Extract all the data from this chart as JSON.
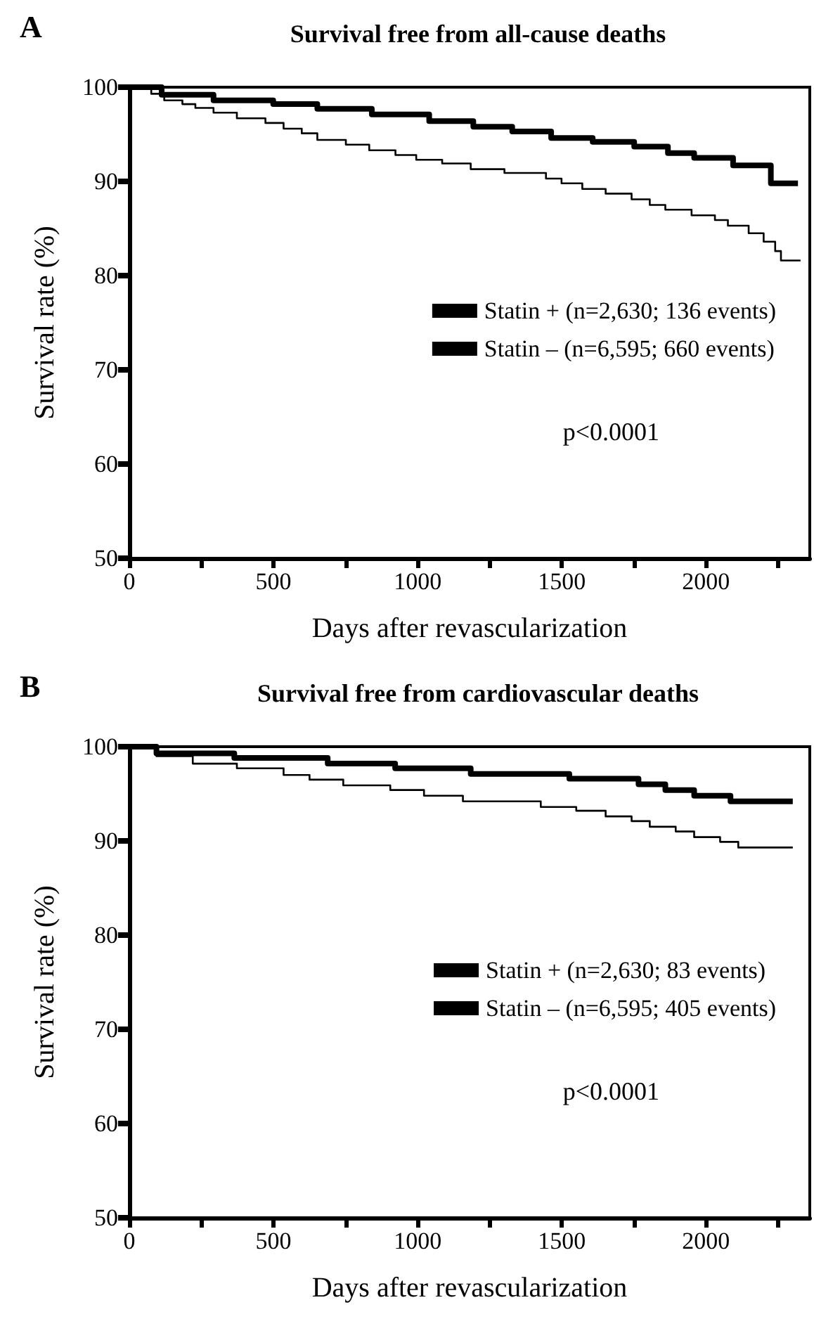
{
  "chart_data": [
    {
      "type": "step",
      "title": "Survival free from all-cause deaths",
      "xlabel": "Days after revascularization",
      "ylabel": "Survival rate (%)",
      "annotations": [
        "A",
        "p<0.0001"
      ],
      "xlim": [
        0,
        2360
      ],
      "xticks": [
        0,
        {
          "value": 250,
          "label": null
        },
        500,
        {
          "value": 750,
          "label": null
        },
        1000,
        {
          "value": 1250,
          "label": null
        },
        1500,
        {
          "value": 1750,
          "label": null
        },
        2000,
        {
          "value": 2250,
          "label": null
        }
      ],
      "ylim": [
        50,
        100
      ],
      "yticks": [
        50,
        60,
        70,
        80,
        90,
        100
      ],
      "legend": "right",
      "grid": false,
      "marker": "none",
      "series": [
        {
          "name": "Statin + (n=2,630; 136 events)",
          "color": "#000000",
          "x": [
            0,
            112,
            292,
            499,
            652,
            841,
            1040,
            1193,
            1328,
            1463,
            1607,
            1751,
            1868,
            1959,
            2094,
            2225,
            2319
          ],
          "values": [
            100,
            99.2,
            98.6,
            98.2,
            97.7,
            97.1,
            96.4,
            95.8,
            95.3,
            94.6,
            94.2,
            93.7,
            93.0,
            92.5,
            91.7,
            89.8,
            89.8
          ]
        },
        {
          "name": "Statin – (n=6,595; 660 events)",
          "color": "#000000",
          "x": [
            0,
            76,
            121,
            184,
            229,
            292,
            373,
            472,
            535,
            598,
            652,
            751,
            832,
            923,
            995,
            1085,
            1184,
            1301,
            1445,
            1499,
            1571,
            1652,
            1742,
            1805,
            1859,
            1950,
            2031,
            2076,
            2148,
            2200,
            2240,
            2260,
            2328
          ],
          "values": [
            100,
            99.3,
            98.6,
            98.2,
            97.8,
            97.3,
            96.7,
            96.2,
            95.6,
            95.1,
            94.4,
            93.9,
            93.3,
            92.8,
            92.3,
            91.9,
            91.3,
            90.9,
            90.3,
            89.8,
            89.2,
            88.7,
            88.1,
            87.5,
            87.0,
            86.4,
            85.9,
            85.3,
            84.5,
            83.6,
            82.6,
            81.6,
            81.6
          ]
        }
      ]
    },
    {
      "type": "step",
      "title": "Survival free from cardiovascular deaths",
      "xlabel": "Days after revascularization",
      "ylabel": "Survival rate (%)",
      "annotations": [
        "B",
        "p<0.0001"
      ],
      "xlim": [
        0,
        2360
      ],
      "xticks": [
        0,
        {
          "value": 250,
          "label": null
        },
        500,
        {
          "value": 750,
          "label": null
        },
        1000,
        {
          "value": 1250,
          "label": null
        },
        1500,
        {
          "value": 1750,
          "label": null
        },
        2000,
        {
          "value": 2250,
          "label": null
        }
      ],
      "ylim": [
        50,
        100
      ],
      "yticks": [
        50,
        60,
        70,
        80,
        90,
        100
      ],
      "legend": "right",
      "grid": false,
      "marker": "none",
      "series": [
        {
          "name": "Statin + (n=2,630; 83 events)",
          "color": "#000000",
          "x": [
            0,
            94,
            364,
            688,
            922,
            1184,
            1526,
            1766,
            1859,
            1959,
            2085,
            2301
          ],
          "values": [
            100,
            99.3,
            98.8,
            98.2,
            97.7,
            97.1,
            96.6,
            96.0,
            95.4,
            94.8,
            94.2,
            94.2
          ]
        },
        {
          "name": "Statin – (n=6,595; 405 events)",
          "color": "#000000",
          "x": [
            0,
            94,
            220,
            373,
            535,
            625,
            742,
            905,
            1022,
            1157,
            1427,
            1550,
            1652,
            1742,
            1805,
            1895,
            1959,
            2049,
            2112,
            2301
          ],
          "values": [
            100,
            99.0,
            98.2,
            97.7,
            97.0,
            96.5,
            95.9,
            95.4,
            94.8,
            94.2,
            93.6,
            93.2,
            92.6,
            92.1,
            91.5,
            91.0,
            90.4,
            89.9,
            89.3,
            89.3
          ]
        }
      ]
    }
  ]
}
